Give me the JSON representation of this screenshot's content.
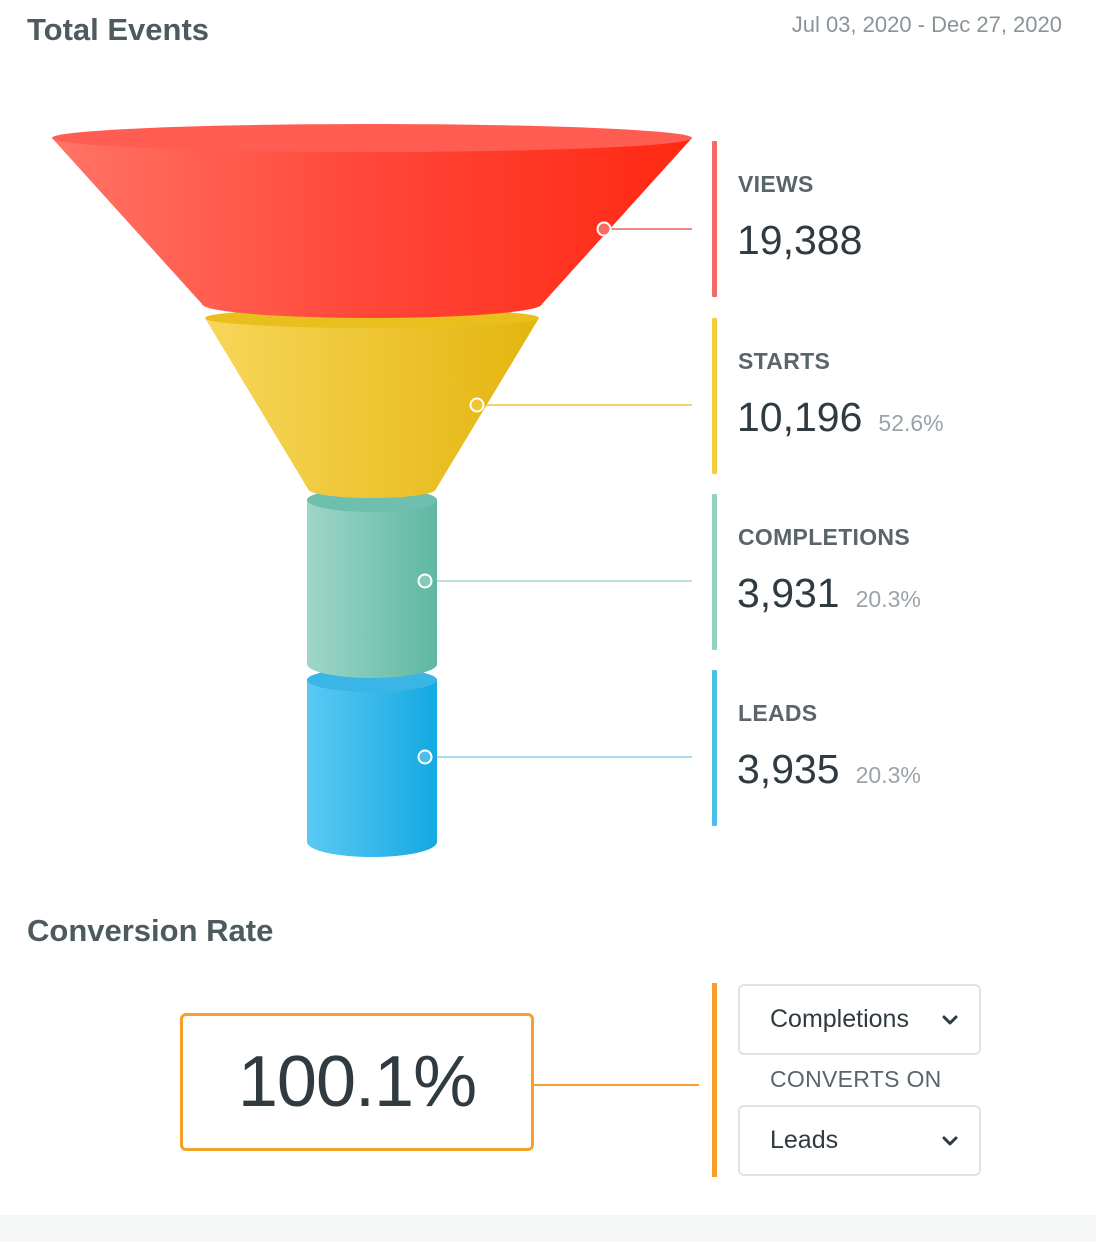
{
  "header": {
    "title": "Total Events",
    "date_range": "Jul 03, 2020 - Dec 27, 2020"
  },
  "funnel": {
    "stages": [
      {
        "label": "VIEWS",
        "value": "19,388",
        "percent": "",
        "color": "#ff3b2e"
      },
      {
        "label": "STARTS",
        "value": "10,196",
        "percent": "52.6%",
        "color": "#f2c630"
      },
      {
        "label": "COMPLETIONS",
        "value": "3,931",
        "percent": "20.3%",
        "color": "#86c9b5"
      },
      {
        "label": "LEADS",
        "value": "3,935",
        "percent": "20.3%",
        "color": "#4bbfea"
      }
    ]
  },
  "conversion": {
    "title": "Conversion Rate",
    "rate": "100.1%",
    "from_select": {
      "value": "Completions"
    },
    "converts_on_label": "CONVERTS ON",
    "to_select": {
      "value": "Leads"
    },
    "accent_color": "#f6a02b"
  },
  "icons": {
    "dropdown": "chevron-down-icon"
  }
}
